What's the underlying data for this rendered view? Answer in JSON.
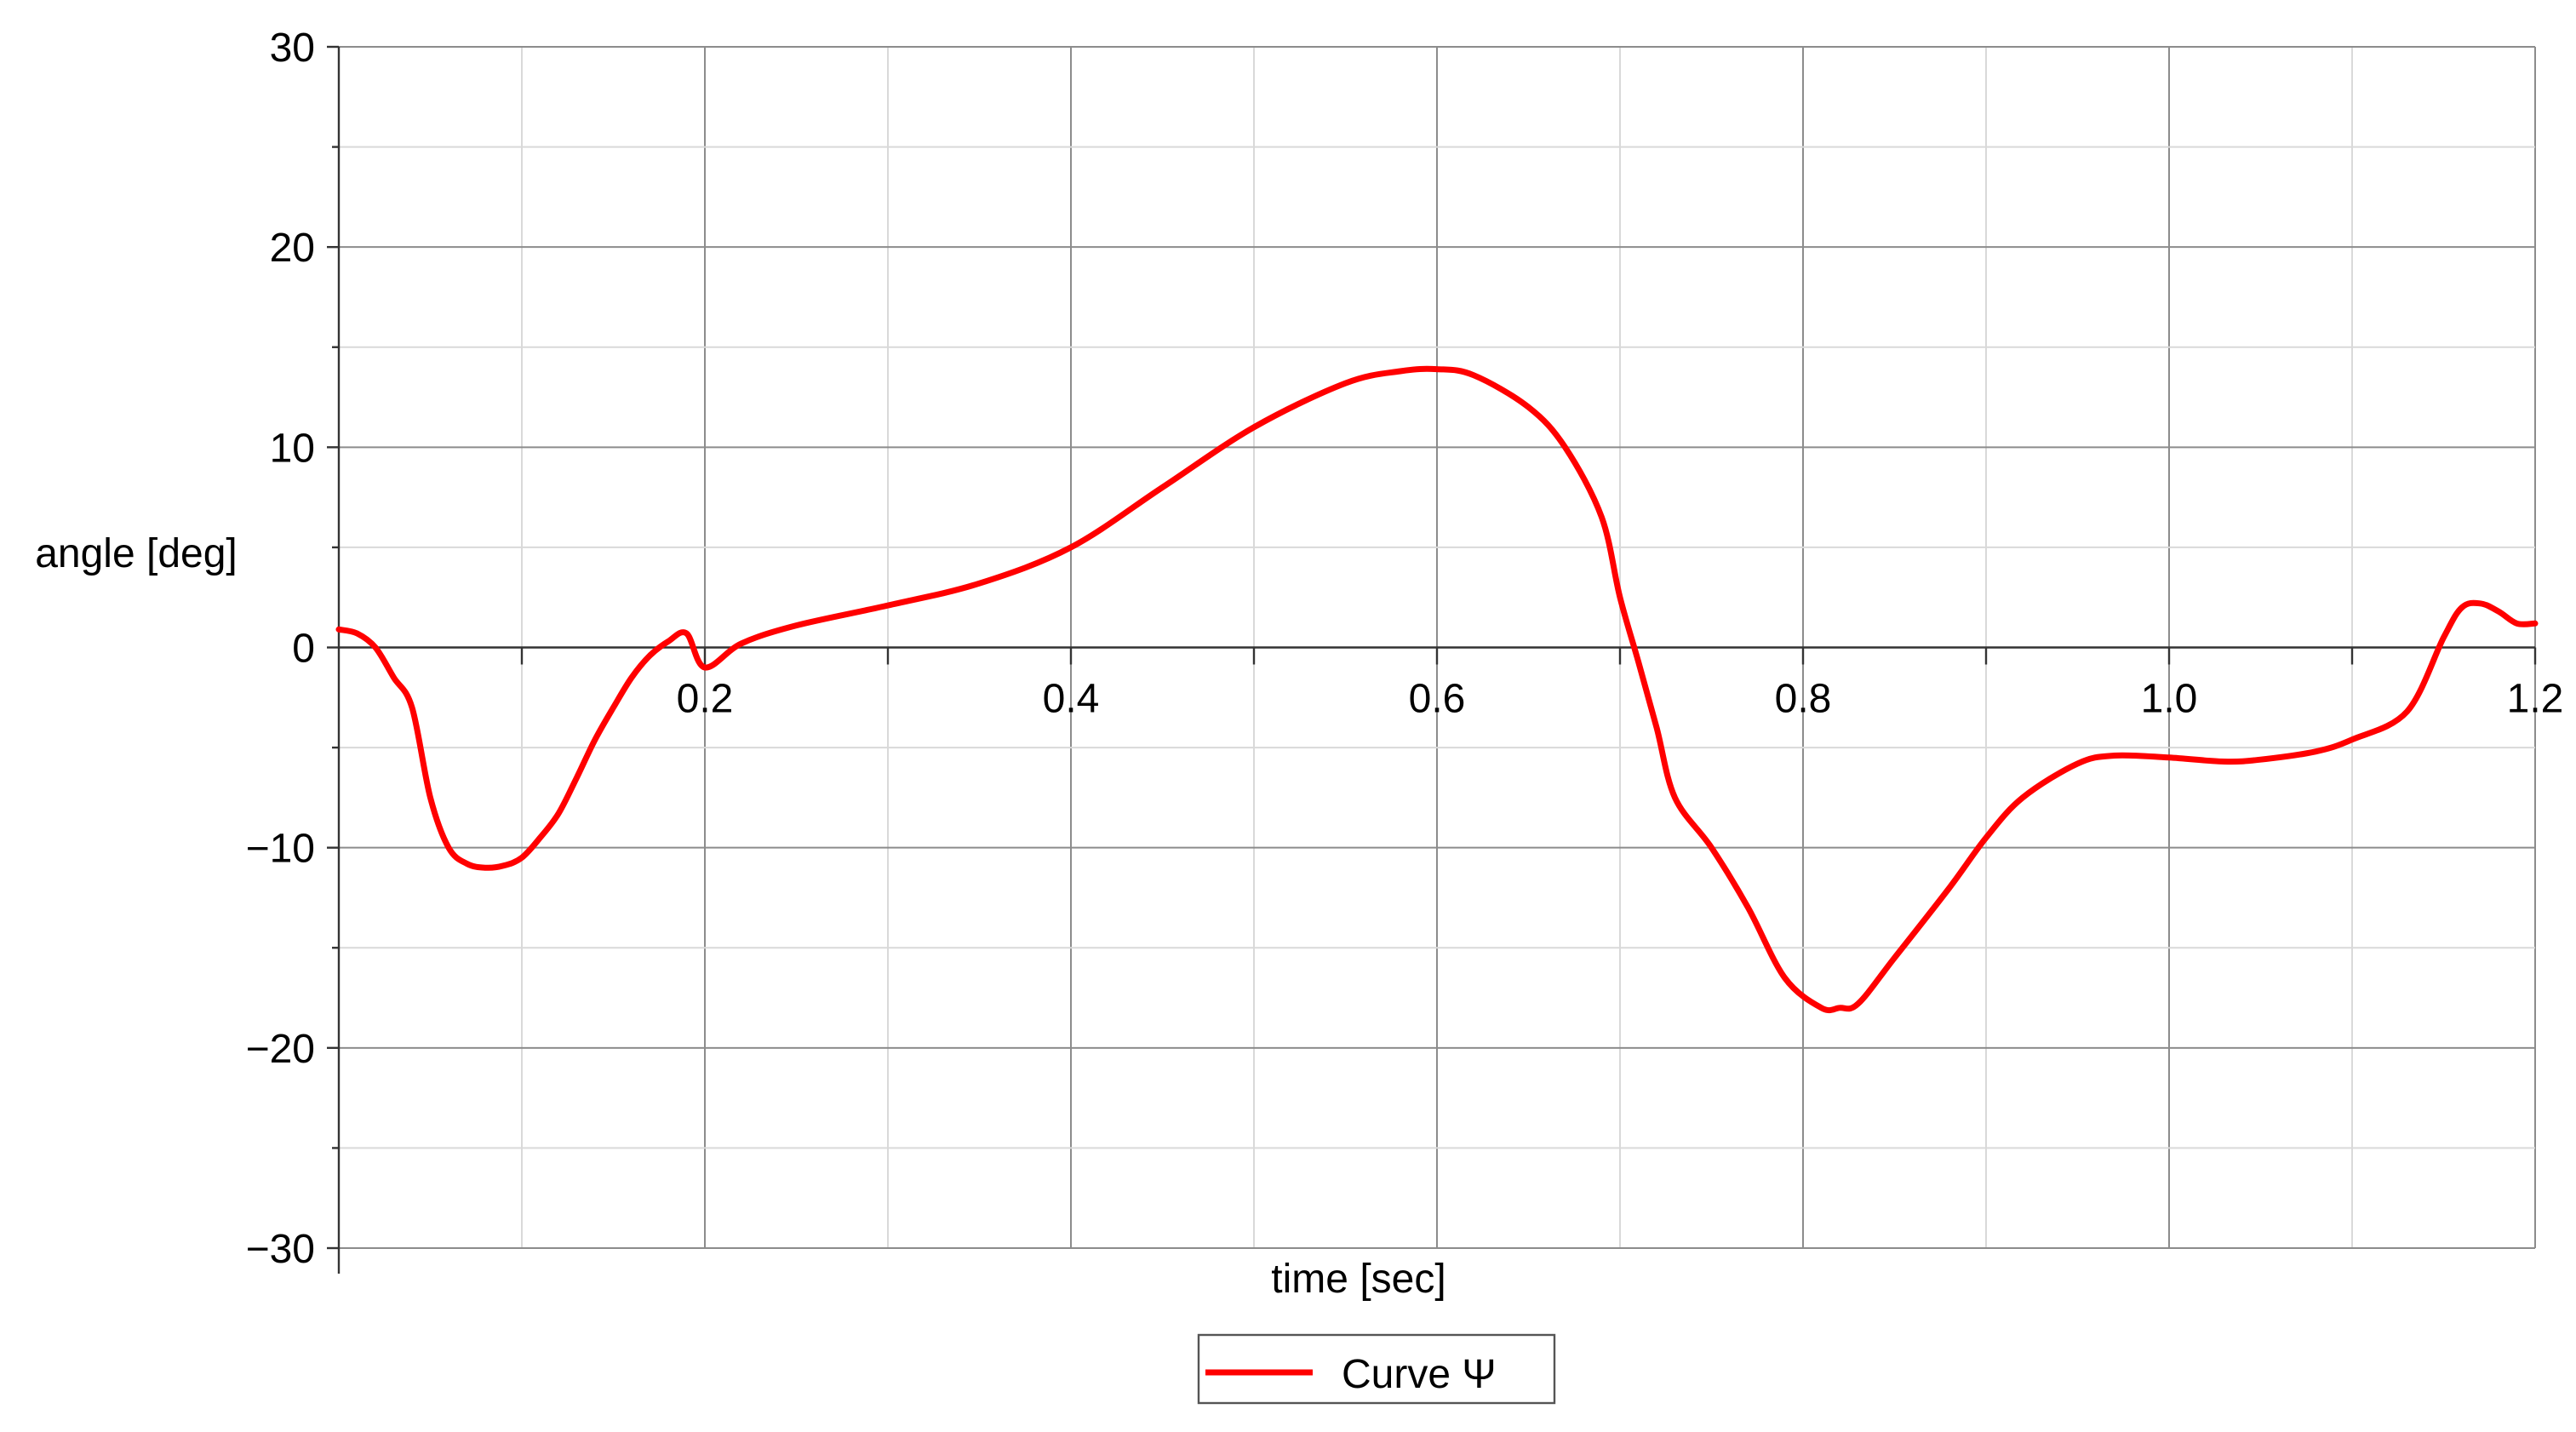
{
  "chart_data": {
    "type": "line",
    "title": "",
    "xlabel": "time [sec]",
    "ylabel": "angle [deg]",
    "xlim": [
      0.0,
      1.2
    ],
    "ylim": [
      -30,
      30
    ],
    "x_ticks": [
      0.2,
      0.4,
      0.6,
      0.8,
      1.0,
      1.2
    ],
    "x_tick_labels": [
      "0.2",
      "0.4",
      "0.6",
      "0.8",
      "1.0",
      "1.2"
    ],
    "y_ticks": [
      -30,
      -20,
      -10,
      0,
      10,
      20,
      30
    ],
    "y_tick_labels": [
      "−30",
      "−20",
      "−10",
      "0",
      "10",
      "20",
      "30"
    ],
    "grid": true,
    "legend_position": "bottom-center",
    "series": [
      {
        "name": "Curve Ψ",
        "color": "#ff0000",
        "x": [
          0.0,
          0.01,
          0.02,
          0.03,
          0.04,
          0.05,
          0.06,
          0.07,
          0.08,
          0.09,
          0.1,
          0.11,
          0.12,
          0.13,
          0.14,
          0.15,
          0.16,
          0.17,
          0.18,
          0.19,
          0.2,
          0.22,
          0.25,
          0.3,
          0.35,
          0.4,
          0.45,
          0.5,
          0.55,
          0.58,
          0.6,
          0.62,
          0.65,
          0.67,
          0.69,
          0.7,
          0.71,
          0.72,
          0.73,
          0.75,
          0.77,
          0.79,
          0.81,
          0.82,
          0.83,
          0.85,
          0.88,
          0.9,
          0.92,
          0.95,
          0.97,
          1.0,
          1.03,
          1.05,
          1.08,
          1.1,
          1.13,
          1.15,
          1.16,
          1.17,
          1.18,
          1.19,
          1.2
        ],
        "y": [
          0.9,
          0.7,
          0.0,
          -1.5,
          -3.0,
          -7.5,
          -10.0,
          -10.8,
          -11.0,
          -10.9,
          -10.5,
          -9.5,
          -8.3,
          -6.5,
          -4.6,
          -3.0,
          -1.5,
          -0.4,
          0.3,
          0.7,
          -1.0,
          0.2,
          1.1,
          2.1,
          3.2,
          5.0,
          8.0,
          11.0,
          13.2,
          13.8,
          13.9,
          13.6,
          12.0,
          10.0,
          6.5,
          2.5,
          -0.7,
          -4.0,
          -7.5,
          -10.0,
          -13.0,
          -16.5,
          -18.0,
          -18.0,
          -17.8,
          -15.5,
          -12.0,
          -9.5,
          -7.5,
          -5.8,
          -5.4,
          -5.5,
          -5.7,
          -5.6,
          -5.2,
          -4.6,
          -3.2,
          0.5,
          2.0,
          2.2,
          1.8,
          1.2,
          1.2
        ]
      }
    ]
  }
}
